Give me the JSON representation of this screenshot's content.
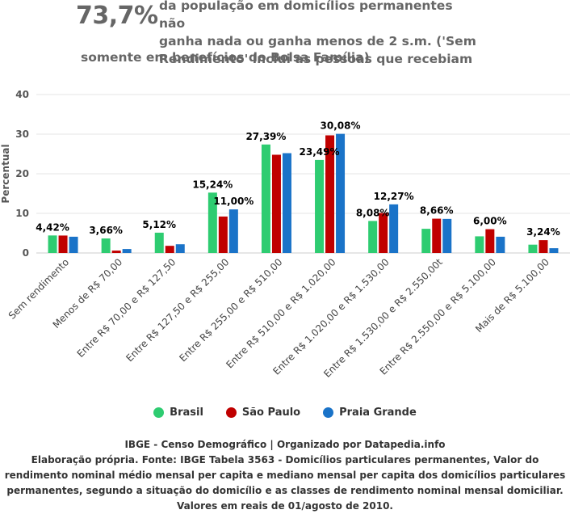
{
  "header": {
    "big_number": "73,7%",
    "headline_lines": [
      "da população em domicílios permanentes não",
      "ganha nada ou ganha menos de 2 s.m. ('Sem",
      "Rendimento' inclui as pessoas que recebiam"
    ],
    "headline_last": "somente em benefícios do Bolsa Família)"
  },
  "footer": {
    "credit": "IBGE - Censo Demográfico | Organizado por Datapedia.info",
    "source": "Elaboração própria. Fonte: IBGE Tabela 3563 - Domicílios particulares permanentes, Valor do rendimento nominal médio mensal per capita e mediano mensal per capita dos domicílios particulares permanentes, segundo a situação do domicílio e as classes de rendimento nominal mensal domiciliar. Valores em reais de 01/agosto de 2010."
  },
  "chart_data": {
    "type": "bar",
    "ylabel": "Percentual",
    "xlabel": "",
    "ylim": [
      0,
      40
    ],
    "yticks": [
      0,
      10,
      20,
      30,
      40
    ],
    "grid": true,
    "legend_position": "bottom-center",
    "categories": [
      "Sem rendimento",
      "Menos de R$ 70,00",
      "Entre R$ 70,00 e R$ 127,50",
      "Entre R$ 127,50 e R$ 255,00",
      "Entre R$ 255,00 e R$ 510,00",
      "Entre R$ 510,00 e R$ 1.020,00",
      "Entre R$ 1.020,00 e R$ 1.530,00",
      "Entre R$ 1.530,00 e R$ 2.550,00t",
      "Entre R$ 2.550,00 e R$ 5.100,00",
      "Mais de R$ 5.100,00"
    ],
    "series": [
      {
        "name": "Brasil",
        "color": "#2ecc71",
        "values": [
          4.42,
          3.66,
          5.12,
          15.24,
          27.39,
          23.49,
          8.08,
          6.1,
          4.2,
          2.1
        ]
      },
      {
        "name": "São Paulo",
        "color": "#c00000",
        "values": [
          4.4,
          0.6,
          1.8,
          9.2,
          24.8,
          29.7,
          10.1,
          8.66,
          6.0,
          3.24
        ]
      },
      {
        "name": "Praia Grande",
        "color": "#1a73c8",
        "values": [
          4.1,
          1.0,
          2.2,
          11.0,
          25.2,
          30.08,
          12.27,
          8.6,
          4.1,
          1.2
        ]
      }
    ],
    "data_labels": [
      {
        "category": 0,
        "series": 0,
        "text": "4,42%"
      },
      {
        "category": 1,
        "series": 0,
        "text": "3,66%"
      },
      {
        "category": 2,
        "series": 0,
        "text": "5,12%"
      },
      {
        "category": 3,
        "series": 0,
        "text": "15,24%"
      },
      {
        "category": 3,
        "series": 2,
        "text": "11,00%"
      },
      {
        "category": 4,
        "series": 0,
        "text": "27,39%"
      },
      {
        "category": 5,
        "series": 0,
        "text": "23,49%"
      },
      {
        "category": 5,
        "series": 2,
        "text": "30,08%"
      },
      {
        "category": 6,
        "series": 0,
        "text": "8,08%"
      },
      {
        "category": 6,
        "series": 2,
        "text": "12,27%"
      },
      {
        "category": 7,
        "series": 1,
        "text": "8,66%"
      },
      {
        "category": 8,
        "series": 1,
        "text": "6,00%"
      },
      {
        "category": 9,
        "series": 1,
        "text": "3,24%"
      }
    ]
  }
}
